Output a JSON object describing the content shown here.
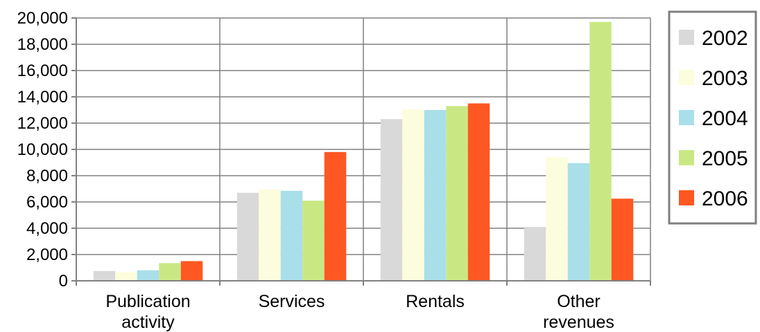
{
  "chart_data": {
    "type": "bar",
    "categories": [
      [
        "Publication",
        "activity"
      ],
      [
        "Services"
      ],
      [
        "Rentals"
      ],
      [
        "Other",
        "revenues"
      ]
    ],
    "series": [
      {
        "name": "2002",
        "color": "#d9d9d9",
        "values": [
          750,
          6700,
          12300,
          4100
        ]
      },
      {
        "name": "2003",
        "color": "#fbfddc",
        "values": [
          650,
          6950,
          13050,
          9400
        ]
      },
      {
        "name": "2004",
        "color": "#a9dfe9",
        "values": [
          800,
          6850,
          13000,
          8950
        ]
      },
      {
        "name": "2005",
        "color": "#c9e884",
        "values": [
          1350,
          6100,
          13300,
          19700
        ]
      },
      {
        "name": "2006",
        "color": "#ff5722",
        "values": [
          1500,
          9800,
          13500,
          6250
        ]
      }
    ],
    "y_tick_labels": [
      "0",
      "2,000",
      "4,000",
      "6,000",
      "8,000",
      "10,000",
      "12,000",
      "14,000",
      "16,000",
      "18,000",
      "20,000"
    ],
    "ylim": [
      0,
      20000
    ],
    "y_step": 2000,
    "grid": "horizontal and vertical",
    "legend_position": "right",
    "title": "",
    "xlabel": "",
    "ylabel": ""
  }
}
